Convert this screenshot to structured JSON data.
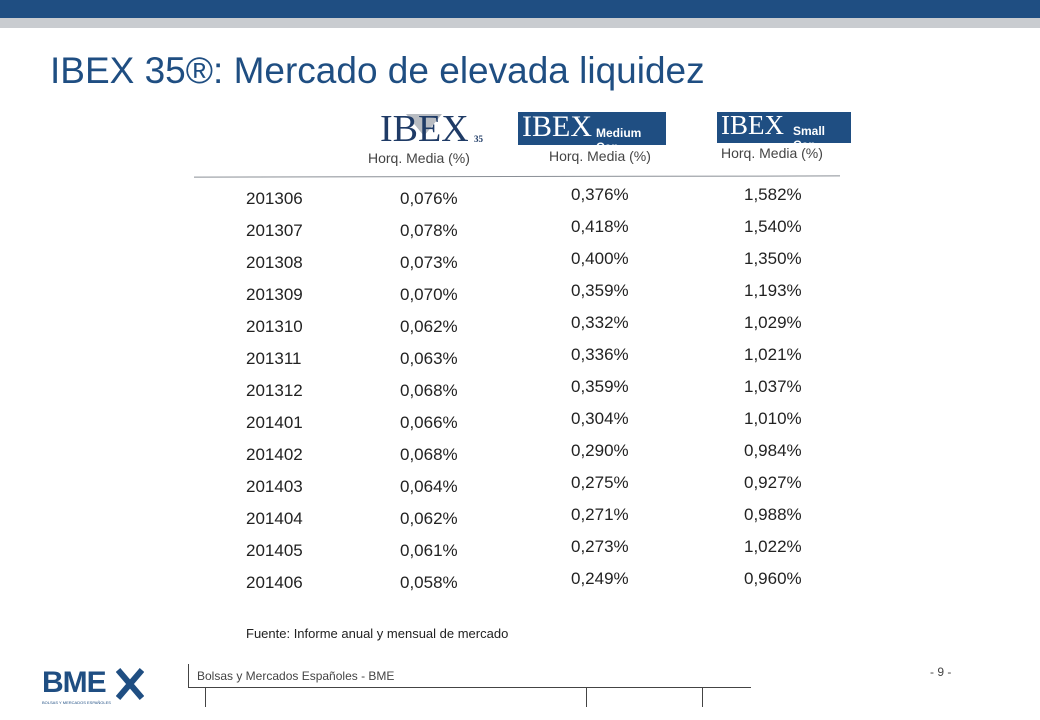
{
  "slide": {
    "title": "IBEX 35®: Mercado de elevada liquidez",
    "source_note": "Fuente: Informe anual y mensual de mercado",
    "footer_company": "Bolsas y Mercados Españoles - BME",
    "page_number": "- 9 -"
  },
  "logos": {
    "ibex35": {
      "main": "IBEX",
      "suffix": "35"
    },
    "ibex_medium_cap": {
      "main": "IBEX",
      "suffix": "Medium Cap"
    },
    "ibex_small_cap": {
      "main": "IBEX",
      "suffix": "Small Cap"
    },
    "bme": {
      "main": "BME",
      "tagline": "BOLSAS Y MERCADOS ESPAÑOLES"
    }
  },
  "columns": {
    "ibex35": "Horq. Media (%)",
    "medium": "Horq. Media (%)",
    "small": "Horq. Media (%)"
  },
  "rows": [
    {
      "period": "201306",
      "ibex35": "0,076%",
      "medium": "0,376%",
      "small": "1,582%"
    },
    {
      "period": "201307",
      "ibex35": "0,078%",
      "medium": "0,418%",
      "small": "1,540%"
    },
    {
      "period": "201308",
      "ibex35": "0,073%",
      "medium": "0,400%",
      "small": "1,350%"
    },
    {
      "period": "201309",
      "ibex35": "0,070%",
      "medium": "0,359%",
      "small": "1,193%"
    },
    {
      "period": "201310",
      "ibex35": "0,062%",
      "medium": "0,332%",
      "small": "1,029%"
    },
    {
      "period": "201311",
      "ibex35": "0,063%",
      "medium": "0,336%",
      "small": "1,021%"
    },
    {
      "period": "201312",
      "ibex35": "0,068%",
      "medium": "0,359%",
      "small": "1,037%"
    },
    {
      "period": "201401",
      "ibex35": "0,066%",
      "medium": "0,304%",
      "small": "1,010%"
    },
    {
      "period": "201402",
      "ibex35": "0,068%",
      "medium": "0,290%",
      "small": "0,984%"
    },
    {
      "period": "201403",
      "ibex35": "0,064%",
      "medium": "0,275%",
      "small": "0,927%"
    },
    {
      "period": "201404",
      "ibex35": "0,062%",
      "medium": "0,271%",
      "small": "0,988%"
    },
    {
      "period": "201405",
      "ibex35": "0,061%",
      "medium": "0,273%",
      "small": "1,022%"
    },
    {
      "period": "201406",
      "ibex35": "0,058%",
      "medium": "0,249%",
      "small": "0,960%"
    }
  ],
  "colors": {
    "brand_blue": "#1f4e82",
    "band_grey": "#c9ccd0"
  }
}
